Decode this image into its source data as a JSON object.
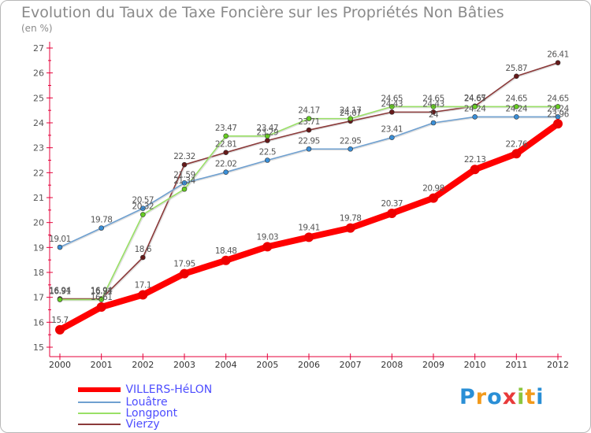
{
  "page": {
    "title": "Evolution du Taux de Taxe Foncière sur les Propriétés Non Bâties",
    "unit": "(en %)",
    "logo": {
      "letters": [
        "P",
        "r",
        "o",
        "x",
        "i",
        "t",
        "i"
      ],
      "colors": [
        "#2a8fd6",
        "#f29a1b",
        "#2a8fd6",
        "#e83a3a",
        "#8cc63f",
        "#f29a1b",
        "#2a8fd6"
      ]
    }
  },
  "chart_data": {
    "type": "line",
    "title": "Evolution du Taux de Taxe Foncière sur les Propriétés Non Bâties",
    "ylabel": "(en %)",
    "xlabel": "",
    "x": [
      2000,
      2001,
      2002,
      2003,
      2004,
      2005,
      2006,
      2007,
      2008,
      2009,
      2010,
      2011,
      2012
    ],
    "ylim": [
      15,
      27
    ],
    "yticks": [
      15,
      16,
      17,
      18,
      19,
      20,
      21,
      22,
      23,
      24,
      25,
      26,
      27
    ],
    "grid": false,
    "legend": "bottom-left",
    "series": [
      {
        "name": "VILLERS-HéLON",
        "color": "#ff0000",
        "marker_color": "#ee0000",
        "values": [
          15.7,
          16.61,
          17.1,
          17.95,
          18.48,
          19.03,
          19.41,
          19.78,
          20.37,
          20.98,
          22.13,
          22.76,
          23.96
        ],
        "labels": [
          "15.7",
          "16.61",
          "17.1",
          "17.95",
          "18.48",
          "19.03",
          "19.41",
          "19.78",
          "20.37",
          "20.98",
          "22.13",
          "22.76",
          "23.96"
        ]
      },
      {
        "name": "Louâtre",
        "color": "#6fa0d0",
        "marker_color": "#3a8fd8",
        "values": [
          19.01,
          19.78,
          20.57,
          21.59,
          22.02,
          22.5,
          22.95,
          22.95,
          23.41,
          24,
          24.24,
          24.24,
          24.24
        ],
        "labels": [
          "19.01",
          "19.78",
          "20.57",
          "21.59",
          "22.02",
          "22.5",
          "22.95",
          "22.95",
          "23.41",
          "24",
          "24.24",
          "24.24",
          "24.24"
        ]
      },
      {
        "name": "Longpont",
        "color": "#99e066",
        "marker_color": "#66cc22",
        "values": [
          16.91,
          16.91,
          20.32,
          21.34,
          23.47,
          23.47,
          24.17,
          24.17,
          24.65,
          24.65,
          24.65,
          24.65,
          24.65
        ],
        "labels": [
          "16.91",
          "16.91",
          "20.32",
          "21.34",
          "23.47",
          "23.47",
          "24.17",
          "24.17",
          "24.65",
          "24.65",
          "24.65",
          "24.65",
          "24.65"
        ]
      },
      {
        "name": "Vierzy",
        "color": "#8b3a3a",
        "marker_color": "#661a1a",
        "values": [
          16.94,
          16.94,
          18.6,
          22.32,
          22.81,
          23.29,
          23.71,
          24.07,
          24.43,
          24.43,
          24.67,
          25.87,
          26.41
        ],
        "labels": [
          "16.94",
          "16.94",
          "18.6",
          "22.32",
          "22.81",
          "23.29",
          "23.71",
          "24.07",
          "24.43",
          "24.43",
          "24.67",
          "25.87",
          "26.41"
        ]
      }
    ]
  }
}
